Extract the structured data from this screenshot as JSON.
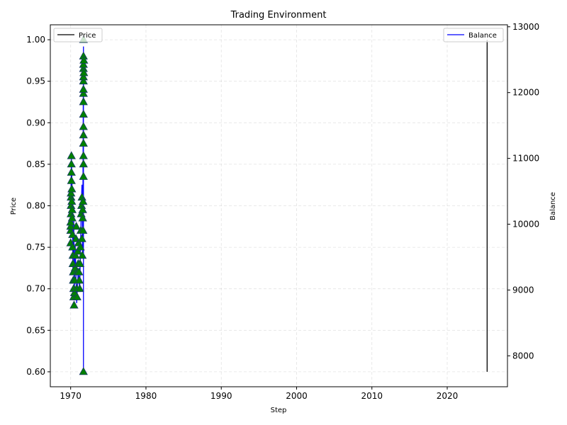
{
  "chart_data": {
    "type": "line",
    "title": "Trading Environment",
    "xlabel": "Step",
    "ylabel_left": "Price",
    "ylabel_right": "Balance",
    "xlim": [
      1967.3,
      2028.0
    ],
    "ylim_left": [
      0.582,
      1.018
    ],
    "ylim_right": [
      7530,
      13030
    ],
    "x_ticks": [
      1970,
      1980,
      1990,
      2000,
      2010,
      2020
    ],
    "y_left_ticks": [
      0.6,
      0.65,
      0.7,
      0.75,
      0.8,
      0.85,
      0.9,
      0.95,
      1.0
    ],
    "y_right_ticks": [
      8000,
      9000,
      10000,
      11000,
      12000,
      13000
    ],
    "grid": true,
    "legend_left": {
      "label": "Price",
      "color": "#000000",
      "position": "upper-left"
    },
    "legend_right": {
      "label": "Balance",
      "color": "#0000ff",
      "position": "upper-right"
    },
    "series": [
      {
        "name": "Price",
        "axis": "left",
        "color": "#000000",
        "x": [
          2025.3,
          2025.3,
          2025.3,
          2025.3,
          2025.3
        ],
        "values": [
          1.0,
          0.98,
          0.6,
          0.78,
          0.6
        ]
      },
      {
        "name": "Balance",
        "axis": "right",
        "color": "#0000ff",
        "x": [
          1970.0,
          1970.1,
          1970.2,
          1970.3,
          1970.4,
          1970.5,
          1970.6,
          1970.8,
          1971.0,
          1971.2,
          1971.4,
          1971.5,
          1971.6,
          1971.7,
          1971.7,
          1971.7,
          1971.7
        ],
        "values": [
          10100,
          11000,
          10500,
          9300,
          10100,
          9000,
          9700,
          8800,
          9300,
          9000,
          10200,
          10600,
          9500,
          12700,
          7800,
          10500,
          9800
        ]
      }
    ],
    "markers": {
      "shape": "triangle-up",
      "color": "#008000",
      "edge_color": "#1a3a6b",
      "axis": "left",
      "points": [
        [
          1970.0,
          0.77
        ],
        [
          1970.0,
          0.775
        ],
        [
          1970.0,
          0.78
        ],
        [
          1970.0,
          0.755
        ],
        [
          1970.05,
          0.79
        ],
        [
          1970.05,
          0.8
        ],
        [
          1970.05,
          0.81
        ],
        [
          1970.05,
          0.815
        ],
        [
          1970.1,
          0.83
        ],
        [
          1970.1,
          0.84
        ],
        [
          1970.1,
          0.85
        ],
        [
          1970.1,
          0.86
        ],
        [
          1970.15,
          0.82
        ],
        [
          1970.15,
          0.805
        ],
        [
          1970.2,
          0.795
        ],
        [
          1970.2,
          0.785
        ],
        [
          1970.25,
          0.765
        ],
        [
          1970.25,
          0.75
        ],
        [
          1970.3,
          0.74
        ],
        [
          1970.3,
          0.73
        ],
        [
          1970.35,
          0.72
        ],
        [
          1970.35,
          0.71
        ],
        [
          1970.4,
          0.7
        ],
        [
          1970.4,
          0.69
        ],
        [
          1970.45,
          0.68
        ],
        [
          1970.5,
          0.695
        ],
        [
          1970.55,
          0.71
        ],
        [
          1970.6,
          0.725
        ],
        [
          1970.65,
          0.74
        ],
        [
          1970.7,
          0.76
        ],
        [
          1970.75,
          0.775
        ],
        [
          1970.8,
          0.7
        ],
        [
          1970.85,
          0.69
        ],
        [
          1970.9,
          0.72
        ],
        [
          1970.95,
          0.745
        ],
        [
          1971.0,
          0.73
        ],
        [
          1971.05,
          0.755
        ],
        [
          1971.1,
          0.72
        ],
        [
          1971.15,
          0.71
        ],
        [
          1971.2,
          0.7
        ],
        [
          1971.25,
          0.73
        ],
        [
          1971.3,
          0.75
        ],
        [
          1971.35,
          0.77
        ],
        [
          1971.4,
          0.79
        ],
        [
          1971.45,
          0.8
        ],
        [
          1971.5,
          0.81
        ],
        [
          1971.5,
          0.76
        ],
        [
          1971.55,
          0.74
        ],
        [
          1971.6,
          0.785
        ],
        [
          1971.6,
          0.795
        ],
        [
          1971.65,
          0.805
        ],
        [
          1971.65,
          0.77
        ],
        [
          1971.7,
          0.835
        ],
        [
          1971.7,
          0.85
        ],
        [
          1971.7,
          0.86
        ],
        [
          1971.7,
          0.875
        ],
        [
          1971.7,
          0.885
        ],
        [
          1971.7,
          0.895
        ],
        [
          1971.7,
          0.91
        ],
        [
          1971.7,
          0.925
        ],
        [
          1971.7,
          0.935
        ],
        [
          1971.7,
          0.94
        ],
        [
          1971.7,
          0.95
        ],
        [
          1971.7,
          0.955
        ],
        [
          1971.7,
          0.965
        ],
        [
          1971.7,
          0.97
        ],
        [
          1971.7,
          0.98
        ],
        [
          1971.7,
          1.0
        ],
        [
          1971.75,
          0.96
        ],
        [
          1971.75,
          0.975
        ],
        [
          1971.7,
          0.6
        ]
      ]
    }
  }
}
